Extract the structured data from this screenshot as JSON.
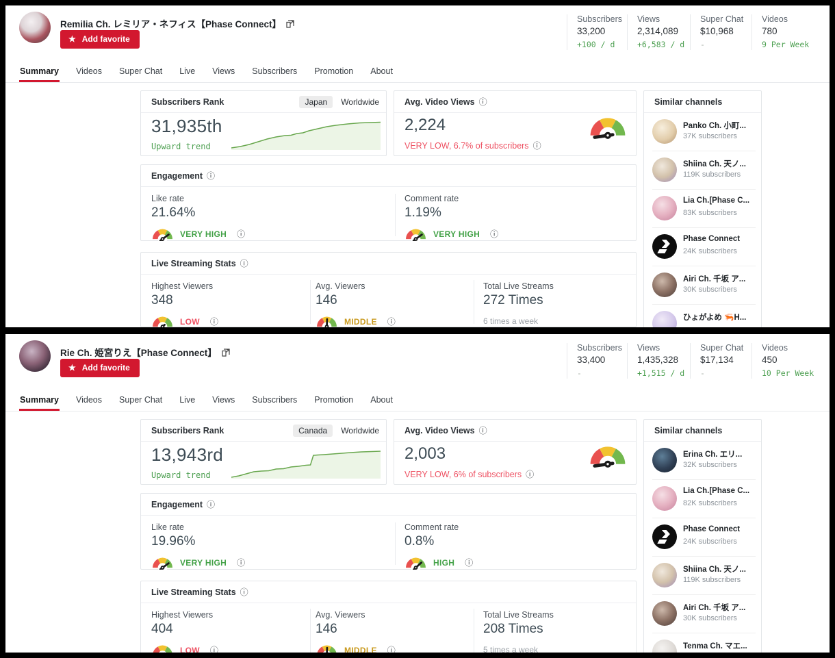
{
  "colors": {
    "accent_red": "#d2182f",
    "positive_green": "#4ea052",
    "negative_red": "#ee5263",
    "middle_gold": "#c99a1e",
    "value_slate": "#3e4c55"
  },
  "tabs": [
    "Summary",
    "Videos",
    "Super Chat",
    "Live",
    "Views",
    "Subscribers",
    "Promotion",
    "About"
  ],
  "active_tab": "Summary",
  "channels": [
    {
      "name": "Remilia Ch. レミリア・ネフィス【Phase Connect】",
      "favorite_label": "Add favorite",
      "stats": [
        {
          "label": "Subscribers",
          "value": "33,200",
          "delta": "+100 / d"
        },
        {
          "label": "Views",
          "value": "2,314,089",
          "delta": "+6,583 / d"
        },
        {
          "label": "Super Chat",
          "value": "$10,968",
          "delta": "-"
        },
        {
          "label": "Videos",
          "value": "780",
          "delta": "9 Per Week"
        }
      ],
      "rank": {
        "title": "Subscribers Rank",
        "region": "Japan",
        "region_alt": "Worldwide",
        "value": "31,935th",
        "trend_label": "Upward trend",
        "trend": [
          [
            0,
            43
          ],
          [
            6,
            41
          ],
          [
            12,
            38
          ],
          [
            18,
            34
          ],
          [
            24,
            30
          ],
          [
            30,
            27
          ],
          [
            36,
            25
          ],
          [
            40,
            24.5
          ],
          [
            44,
            22
          ],
          [
            48,
            21
          ],
          [
            52,
            18
          ],
          [
            58,
            15
          ],
          [
            64,
            12
          ],
          [
            70,
            10
          ],
          [
            78,
            8
          ],
          [
            86,
            6.5
          ],
          [
            93,
            6
          ],
          [
            100,
            5.5
          ]
        ]
      },
      "avg_views": {
        "title": "Avg. Video Views",
        "value": "2,224",
        "assessment": "VERY LOW, 6.7% of subscribers",
        "level": "VERY_LOW"
      },
      "engagement": {
        "title": "Engagement",
        "metrics": [
          {
            "label": "Like rate",
            "value": "21.64%",
            "level": "VERY_HIGH",
            "level_label": "VERY HIGH"
          },
          {
            "label": "Comment rate",
            "value": "1.19%",
            "level": "VERY_HIGH",
            "level_label": "VERY HIGH"
          }
        ]
      },
      "live": {
        "title": "Live Streaming Stats",
        "metrics": [
          {
            "label": "Highest Viewers",
            "value": "348",
            "level": "LOW",
            "level_label": "LOW"
          },
          {
            "label": "Avg. Viewers",
            "value": "146",
            "level": "MIDDLE",
            "level_label": "MIDDLE"
          }
        ],
        "total": {
          "label": "Total Live Streams",
          "value": "272 Times",
          "note": "6 times a week"
        }
      },
      "similar": {
        "title": "Similar channels",
        "items": [
          {
            "name": "Panko Ch. 小町...",
            "subs": "37K subscribers",
            "avatar": "panko"
          },
          {
            "name": "Shiina Ch. 天ノ...",
            "subs": "119K subscribers",
            "avatar": "shiina"
          },
          {
            "name": "Lia Ch.[Phase C...",
            "subs": "83K subscribers",
            "avatar": "lia"
          },
          {
            "name": "Phase Connect",
            "subs": "24K subscribers",
            "avatar": "phase"
          },
          {
            "name": "Airi Ch. 千坂 ア...",
            "subs": "30K subscribers",
            "avatar": "airi"
          },
          {
            "name": "ひょがよめ 🦐H...",
            "subs": "",
            "avatar": "hyogayome"
          }
        ]
      }
    },
    {
      "name": "Rie Ch. 姫宮りえ【Phase Connect】",
      "favorite_label": "Add favorite",
      "stats": [
        {
          "label": "Subscribers",
          "value": "33,400",
          "delta": "-"
        },
        {
          "label": "Views",
          "value": "1,435,328",
          "delta": "+1,515 / d"
        },
        {
          "label": "Super Chat",
          "value": "$17,134",
          "delta": "-"
        },
        {
          "label": "Videos",
          "value": "450",
          "delta": "10 Per Week"
        }
      ],
      "rank": {
        "title": "Subscribers Rank",
        "region": "Canada",
        "region_alt": "Worldwide",
        "value": "13,943rd",
        "trend_label": "Upward trend",
        "trend": [
          [
            0,
            44
          ],
          [
            5,
            42
          ],
          [
            10,
            39
          ],
          [
            15,
            36
          ],
          [
            20,
            35
          ],
          [
            25,
            34.5
          ],
          [
            30,
            32
          ],
          [
            35,
            31.5
          ],
          [
            40,
            29
          ],
          [
            45,
            28
          ],
          [
            50,
            26.5
          ],
          [
            53,
            26
          ],
          [
            55,
            12
          ],
          [
            58,
            11.5
          ],
          [
            62,
            11
          ],
          [
            68,
            10
          ],
          [
            74,
            9
          ],
          [
            80,
            8
          ],
          [
            87,
            7
          ],
          [
            94,
            6.5
          ],
          [
            100,
            6
          ]
        ]
      },
      "avg_views": {
        "title": "Avg. Video Views",
        "value": "2,003",
        "assessment": "VERY LOW, 6% of subscribers",
        "level": "VERY_LOW"
      },
      "engagement": {
        "title": "Engagement",
        "metrics": [
          {
            "label": "Like rate",
            "value": "19.96%",
            "level": "VERY_HIGH",
            "level_label": "VERY HIGH"
          },
          {
            "label": "Comment rate",
            "value": "0.8%",
            "level": "HIGH",
            "level_label": "HIGH"
          }
        ]
      },
      "live": {
        "title": "Live Streaming Stats",
        "metrics": [
          {
            "label": "Highest Viewers",
            "value": "404",
            "level": "LOW",
            "level_label": "LOW"
          },
          {
            "label": "Avg. Viewers",
            "value": "146",
            "level": "MIDDLE",
            "level_label": "MIDDLE"
          }
        ],
        "total": {
          "label": "Total Live Streams",
          "value": "208 Times",
          "note": "5 times a week"
        }
      },
      "similar": {
        "title": "Similar channels",
        "items": [
          {
            "name": "Erina Ch. エリ...",
            "subs": "32K subscribers",
            "avatar": "erina"
          },
          {
            "name": "Lia Ch.[Phase C...",
            "subs": "82K subscribers",
            "avatar": "lia"
          },
          {
            "name": "Phase Connect",
            "subs": "24K subscribers",
            "avatar": "phase"
          },
          {
            "name": "Shiina Ch. 天ノ...",
            "subs": "119K subscribers",
            "avatar": "shiina"
          },
          {
            "name": "Airi Ch. 千坂 ア...",
            "subs": "30K subscribers",
            "avatar": "airi"
          },
          {
            "name": "Tenma Ch. マエ...",
            "subs": "",
            "avatar": "tenma"
          }
        ]
      }
    }
  ]
}
